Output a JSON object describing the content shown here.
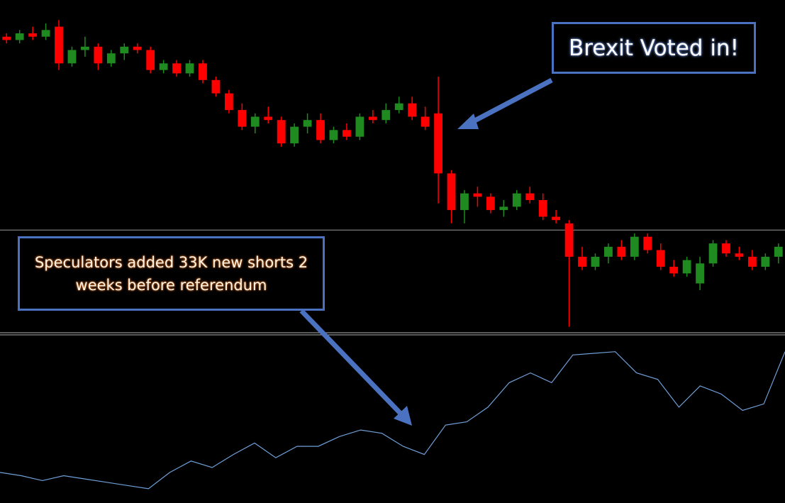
{
  "chart_data": [
    {
      "type": "candlestick",
      "annotations": [
        "Brexit Voted in!",
        "Speculators added 33K new shorts 2 weeks before referendum"
      ],
      "up_color": "#1f8a1f",
      "down_color": "#ff0000",
      "hline": 31,
      "hline_color": "#9a9a9a",
      "ylim": [
        0,
        100
      ],
      "ohlc": [
        [
          89,
          90,
          87,
          88
        ],
        [
          88,
          91,
          87,
          90
        ],
        [
          90,
          92,
          88,
          89
        ],
        [
          89,
          93,
          88,
          91
        ],
        [
          92,
          94,
          79,
          81
        ],
        [
          81,
          86,
          80,
          85
        ],
        [
          85,
          89,
          83,
          86
        ],
        [
          86,
          87,
          79,
          81
        ],
        [
          81,
          85,
          80,
          84
        ],
        [
          84,
          87,
          82,
          86
        ],
        [
          86,
          87,
          84,
          85
        ],
        [
          85,
          86,
          78,
          79
        ],
        [
          79,
          82,
          78,
          81
        ],
        [
          81,
          82,
          77,
          78
        ],
        [
          78,
          82,
          77,
          81
        ],
        [
          81,
          82,
          75,
          76
        ],
        [
          76,
          77,
          71,
          72
        ],
        [
          72,
          73,
          66,
          67
        ],
        [
          67,
          69,
          61,
          62
        ],
        [
          62,
          66,
          60,
          65
        ],
        [
          65,
          68,
          63,
          64
        ],
        [
          64,
          65,
          56,
          57
        ],
        [
          57,
          63,
          56,
          62
        ],
        [
          62,
          66,
          60,
          64
        ],
        [
          64,
          66,
          57,
          58
        ],
        [
          58,
          62,
          57,
          61
        ],
        [
          61,
          63,
          58,
          59
        ],
        [
          59,
          66,
          58,
          65
        ],
        [
          65,
          67,
          63,
          64
        ],
        [
          64,
          69,
          63,
          67
        ],
        [
          67,
          71,
          66,
          69
        ],
        [
          69,
          71,
          64,
          65
        ],
        [
          65,
          68,
          61,
          62
        ],
        [
          66,
          77,
          39,
          48
        ],
        [
          48,
          49,
          33,
          37
        ],
        [
          37,
          43,
          33,
          42
        ],
        [
          42,
          44,
          38,
          41
        ],
        [
          41,
          42,
          36,
          37
        ],
        [
          37,
          40,
          35,
          38
        ],
        [
          38,
          43,
          37,
          42
        ],
        [
          42,
          44,
          39,
          40
        ],
        [
          40,
          42,
          34,
          35
        ],
        [
          35,
          37,
          33,
          34
        ],
        [
          33,
          34,
          2,
          23
        ],
        [
          23,
          26,
          19,
          20
        ],
        [
          20,
          24,
          19,
          23
        ],
        [
          23,
          27,
          21,
          26
        ],
        [
          26,
          28,
          22,
          23
        ],
        [
          23,
          30,
          22,
          29
        ],
        [
          29,
          30,
          24,
          25
        ],
        [
          25,
          27,
          19,
          20
        ],
        [
          20,
          22,
          17,
          18
        ],
        [
          18,
          23,
          17,
          22
        ],
        [
          15,
          23,
          13,
          21
        ],
        [
          21,
          28,
          20,
          27
        ],
        [
          27,
          28,
          23,
          24
        ],
        [
          24,
          26,
          22,
          23
        ],
        [
          23,
          25,
          19,
          20
        ],
        [
          20,
          24,
          19,
          23
        ],
        [
          23,
          27,
          21,
          26
        ]
      ]
    },
    {
      "type": "line",
      "color": "#6f9fd8",
      "ylim": [
        0,
        100
      ],
      "values": [
        17,
        15,
        12,
        15,
        13,
        11,
        9,
        7,
        17,
        24,
        20,
        28,
        35,
        26,
        33,
        33,
        39,
        43,
        41,
        33,
        28,
        46,
        48,
        57,
        72,
        78,
        72,
        89,
        90,
        91,
        78,
        74,
        57,
        70,
        65,
        55,
        59,
        91
      ]
    }
  ]
}
